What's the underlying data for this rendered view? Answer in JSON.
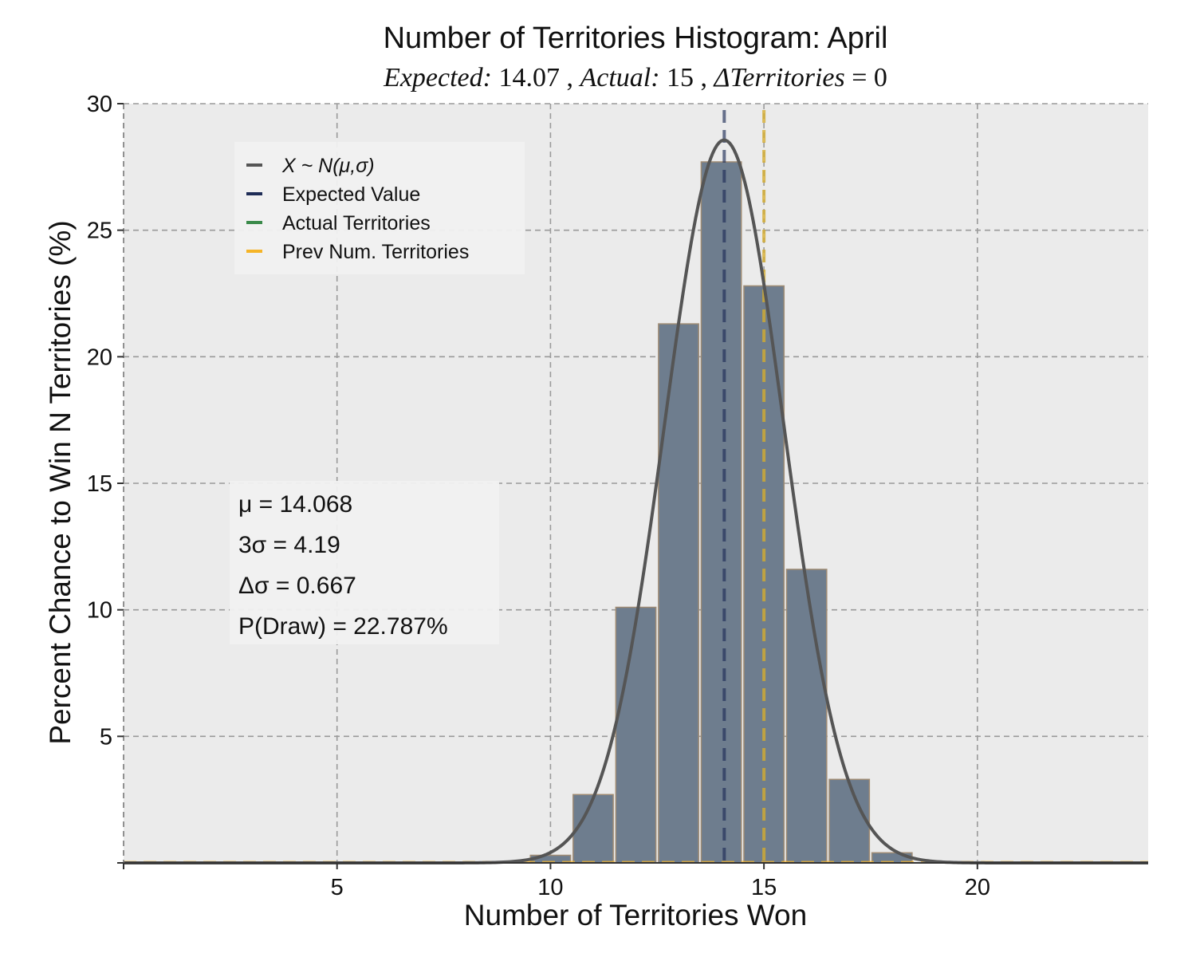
{
  "chart_data": {
    "type": "bar",
    "title": "Number of Territories Histogram: April",
    "subtitle": {
      "expected_label": "Expected:",
      "expected_value": "14.07",
      "sep1": ",",
      "actual_label": "Actual:",
      "actual_value": "15",
      "sep2": ",",
      "delta_label": "ΔTerritories",
      "delta_eq": "= 0"
    },
    "xlabel": "Number of Territories Won",
    "ylabel": "Percent Chance to Win N Territories (%)",
    "xlim": [
      0,
      24
    ],
    "ylim": [
      0,
      30
    ],
    "xticks": [
      5,
      10,
      15,
      20
    ],
    "yticks": [
      5,
      10,
      15,
      20,
      25,
      30
    ],
    "grid": true,
    "background": "#ebebeb",
    "bar_color": "#6e7d8e",
    "bar_edge_color": "#a08c74",
    "x": [
      10,
      11,
      12,
      13,
      14,
      15,
      16,
      17,
      18
    ],
    "values": [
      0.3,
      2.7,
      10.1,
      21.3,
      27.7,
      22.8,
      11.6,
      3.3,
      0.4
    ],
    "normal_curve": {
      "mu": 14.068,
      "sigma": 1.3967,
      "color": "#555555"
    },
    "expected_value_line": {
      "x": 14.07,
      "color": "#1f2d57"
    },
    "actual_territories_line": {
      "x": 15,
      "color": "#3a8a4a"
    },
    "prev_territories_line": {
      "x": 15,
      "color": "#f5b427"
    },
    "legend": {
      "placement": "upper-left",
      "entries": [
        {
          "label": "X ~ N(μ,σ)",
          "color": "#555555"
        },
        {
          "label": "Expected Value",
          "color": "#1f2d57"
        },
        {
          "label": "Actual Territories",
          "color": "#3a8a4a"
        },
        {
          "label": "Prev Num. Territories",
          "color": "#f5b427"
        }
      ]
    },
    "stats": [
      {
        "label": "μ = 14.068"
      },
      {
        "label": "3σ = 4.19"
      },
      {
        "label": "Δσ = 0.667"
      },
      {
        "label": "P(Draw) = 22.787%"
      }
    ]
  }
}
